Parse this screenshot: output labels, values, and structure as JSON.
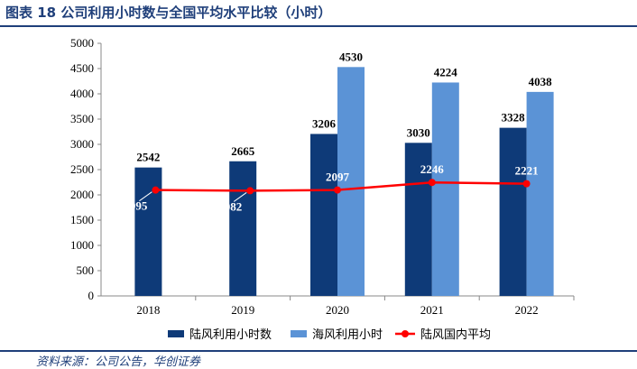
{
  "header": {
    "title": "图表 18 公司利用小时数与全国平均水平比较（小时）"
  },
  "footer": {
    "source": "资料来源：公司公告，华创证券"
  },
  "chart_data": {
    "type": "bar",
    "categories": [
      "2018",
      "2019",
      "2020",
      "2021",
      "2022"
    ],
    "ylim": [
      0,
      5000
    ],
    "yticks": [
      0,
      500,
      1000,
      1500,
      2000,
      2500,
      3000,
      3500,
      4000,
      4500,
      5000
    ],
    "series": [
      {
        "name": "陆风利用小时数",
        "type": "bar",
        "color": "#0e3a78",
        "values": [
          2542,
          2665,
          3206,
          3030,
          3328
        ]
      },
      {
        "name": "海风利用小时",
        "type": "bar",
        "color": "#5b93d6",
        "values": [
          null,
          null,
          4530,
          4224,
          4038
        ]
      },
      {
        "name": "陆风国内平均",
        "type": "line",
        "color": "#ff0000",
        "values": [
          2095,
          2082,
          2097,
          2246,
          2221
        ]
      }
    ],
    "legend_position": "bottom",
    "grid": false
  }
}
